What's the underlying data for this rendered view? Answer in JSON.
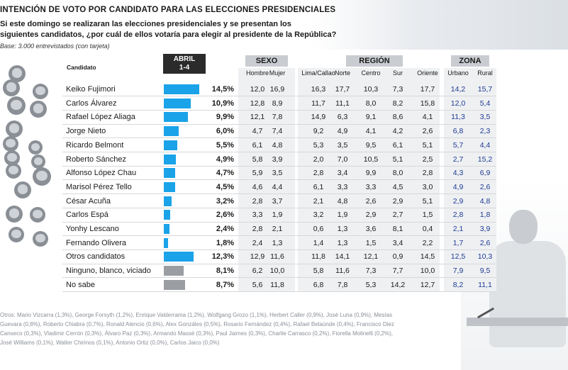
{
  "header": {
    "title": "INTENCIÓN DE VOTO POR CANDIDATO PARA LAS ELECCIONES PRESIDENCIALES",
    "question_line1": "Si este domingo se realizaran las elecciones presidenciales y se presentan los",
    "question_line2": "siguientes candidatos, ¿por cuál de ellos votaría para elegir al presidente de la República?",
    "base": "Base: 3.000 entrevistados (con tarjeta)"
  },
  "columns": {
    "candidate_header": "Candidato",
    "abril_line1": "ABRIL",
    "abril_line2": "1-4",
    "groups": {
      "sexo": "SEXO",
      "region": "REGIÓN",
      "zona": "ZONA"
    },
    "sexo": [
      "Hombre",
      "Mujer"
    ],
    "region": [
      "Lima/Callao",
      "Norte",
      "Centro",
      "Sur",
      "Oriente"
    ],
    "zona": [
      "Urbano",
      "Rural"
    ]
  },
  "colors": {
    "bar_primary": "#1aa3e8",
    "bar_other": "#9a9ea3",
    "band": "#eef0f2"
  },
  "chart_data": {
    "type": "table",
    "title": "INTENCIÓN DE VOTO POR CANDIDATO PARA LAS ELECCIONES PRESIDENCIALES",
    "xlabel": "ABRIL 1-4",
    "ylabel": "Candidato",
    "rows": [
      {
        "name": "Keiko Fujimori",
        "abril": 14.5,
        "abril_label": "14,5%",
        "values": [
          "12,0",
          "16,9",
          "16,3",
          "17,7",
          "10,3",
          "7,3",
          "17,7",
          "14,2",
          "15,7"
        ]
      },
      {
        "name": "Carlos Álvarez",
        "abril": 10.9,
        "abril_label": "10,9%",
        "values": [
          "12,8",
          "8,9",
          "11,7",
          "11,1",
          "8,0",
          "8,2",
          "15,8",
          "12,0",
          "5,4"
        ]
      },
      {
        "name": "Rafael López Aliaga",
        "abril": 9.9,
        "abril_label": "9,9%",
        "values": [
          "12,1",
          "7,8",
          "14,9",
          "6,3",
          "9,1",
          "8,6",
          "4,1",
          "11,3",
          "3,5"
        ]
      },
      {
        "name": "Jorge Nieto",
        "abril": 6.0,
        "abril_label": "6,0%",
        "values": [
          "4,7",
          "7,4",
          "9,2",
          "4,9",
          "4,1",
          "4,2",
          "2,6",
          "6,8",
          "2,3"
        ]
      },
      {
        "name": "Ricardo Belmont",
        "abril": 5.5,
        "abril_label": "5,5%",
        "values": [
          "6,1",
          "4,8",
          "5,3",
          "3,5",
          "9,5",
          "6,1",
          "5,1",
          "5,7",
          "4,4"
        ]
      },
      {
        "name": "Roberto Sánchez",
        "abril": 4.9,
        "abril_label": "4,9%",
        "values": [
          "5,8",
          "3,9",
          "2,0",
          "7,0",
          "10,5",
          "5,1",
          "2,5",
          "2,7",
          "15,2"
        ]
      },
      {
        "name": "Alfonso López Chau",
        "abril": 4.7,
        "abril_label": "4,7%",
        "values": [
          "5,9",
          "3,5",
          "2,8",
          "3,4",
          "9,9",
          "8,0",
          "2,8",
          "4,3",
          "6,9"
        ]
      },
      {
        "name": "Marisol Pérez Tello",
        "abril": 4.5,
        "abril_label": "4,5%",
        "values": [
          "4,6",
          "4,4",
          "6,1",
          "3,3",
          "3,3",
          "4,5",
          "3,0",
          "4,9",
          "2,6"
        ]
      },
      {
        "name": "César Acuña",
        "abril": 3.2,
        "abril_label": "3,2%",
        "values": [
          "2,8",
          "3,7",
          "2,1",
          "4,8",
          "2,6",
          "2,9",
          "5,1",
          "2,9",
          "4,8"
        ]
      },
      {
        "name": "Carlos Espá",
        "abril": 2.6,
        "abril_label": "2,6%",
        "values": [
          "3,3",
          "1,9",
          "3,2",
          "1,9",
          "2,9",
          "2,7",
          "1,5",
          "2,8",
          "1,8"
        ]
      },
      {
        "name": "Yonhy Lescano",
        "abril": 2.4,
        "abril_label": "2,4%",
        "values": [
          "2,8",
          "2,1",
          "0,6",
          "1,3",
          "3,6",
          "8,1",
          "0,4",
          "2,1",
          "3,9"
        ]
      },
      {
        "name": "Fernando Olivera",
        "abril": 1.8,
        "abril_label": "1,8%",
        "values": [
          "2,4",
          "1,3",
          "1,4",
          "1,3",
          "1,5",
          "3,4",
          "2,2",
          "1,7",
          "2,6"
        ]
      },
      {
        "name": "Otros candidatos",
        "abril": 12.3,
        "abril_label": "12,3%",
        "values": [
          "12,9",
          "11,6",
          "11,8",
          "14,1",
          "12,1",
          "0,9",
          "14,5",
          "12,5",
          "10,3"
        ]
      },
      {
        "name": "Ninguno, blanco, viciado",
        "abril": 8.1,
        "abril_label": "8,1%",
        "values": [
          "6,2",
          "10,0",
          "5,8",
          "11,6",
          "7,3",
          "7,7",
          "10,0",
          "7,9",
          "9,5"
        ]
      },
      {
        "name": "No sabe",
        "abril": 8.7,
        "abril_label": "8,7%",
        "values": [
          "5,6",
          "11,8",
          "6,8",
          "7,8",
          "5,3",
          "14,2",
          "12,7",
          "8,2",
          "11,1"
        ]
      }
    ]
  },
  "footnote": {
    "line1": "Otros: Mario Vizcarra (1,3%), George Forsyth (1,2%), Enrique Valderrama (1,2%), Wolfgang Grozo (1,1%), Herbert Caller (0,9%), José Luna (0,9%), Mesías",
    "line2": "Guevara (0,8%), Roberto Chiabra (0,7%), Ronald Atencio (0,6%), Alex Gonzáles (0,5%), Rosario Fernández (0,4%), Rafael Belaúnde (0,4%), Francisco Diez",
    "line3": "Canseco (0,3%), Vladimir Cerrón (0,3%), Álvaro Paz (0,3%), Armando Massé (0,3%), Paul Jaimes (0,3%), Charlie Carrasco (0,2%), Fiorella Molinelli (0,2%),",
    "line4": "José Williams (0,1%), Walter Chirinos (0,1%), Antonio Ortiz (0,0%), Carlos Jaico (0,0%)"
  }
}
